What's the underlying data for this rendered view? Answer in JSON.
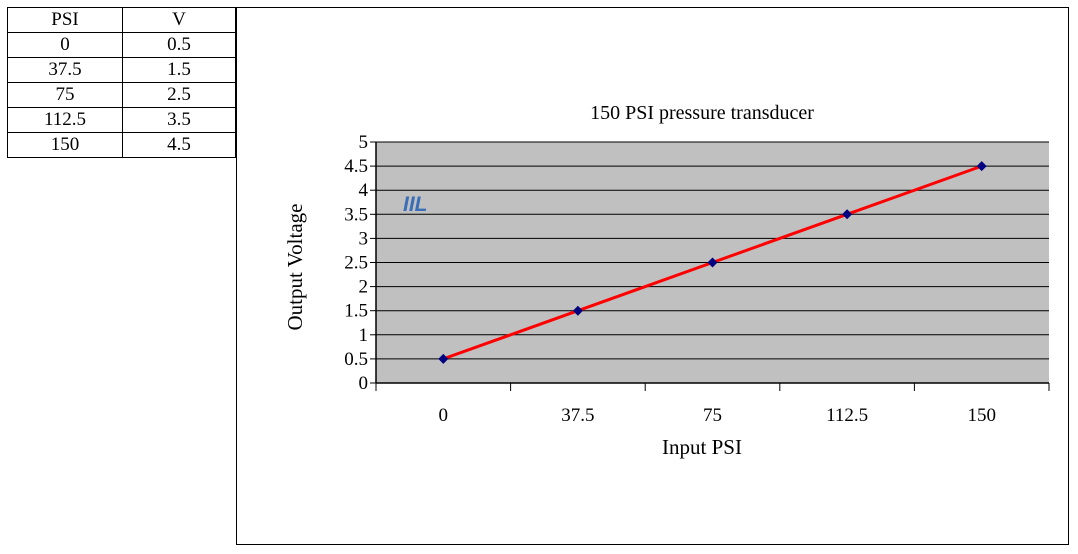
{
  "table": {
    "headers": [
      "PSI",
      "V"
    ],
    "rows": [
      [
        "0",
        "0.5"
      ],
      [
        "37.5",
        "1.5"
      ],
      [
        "75",
        "2.5"
      ],
      [
        "112.5",
        "3.5"
      ],
      [
        "150",
        "4.5"
      ]
    ]
  },
  "logo_text": "IIL",
  "colors": {
    "plot_bg": "#c0c0c0",
    "line": "#ff0000",
    "marker": "#000080",
    "logo": "#3a6fb8"
  },
  "chart_data": {
    "type": "line",
    "title": "150 PSI pressure transducer",
    "xlabel": "Input PSI",
    "ylabel": "Output Voltage",
    "categories": [
      "0",
      "37.5",
      "75",
      "112.5",
      "150"
    ],
    "series": [
      {
        "name": "Output Voltage",
        "values": [
          0.5,
          1.5,
          2.5,
          3.5,
          4.5
        ]
      }
    ],
    "ylim": [
      0,
      5
    ],
    "yticks": [
      "0",
      "0.5",
      "1",
      "1.5",
      "2",
      "2.5",
      "3",
      "3.5",
      "4",
      "4.5",
      "5"
    ],
    "grid": true,
    "legend": "none"
  }
}
